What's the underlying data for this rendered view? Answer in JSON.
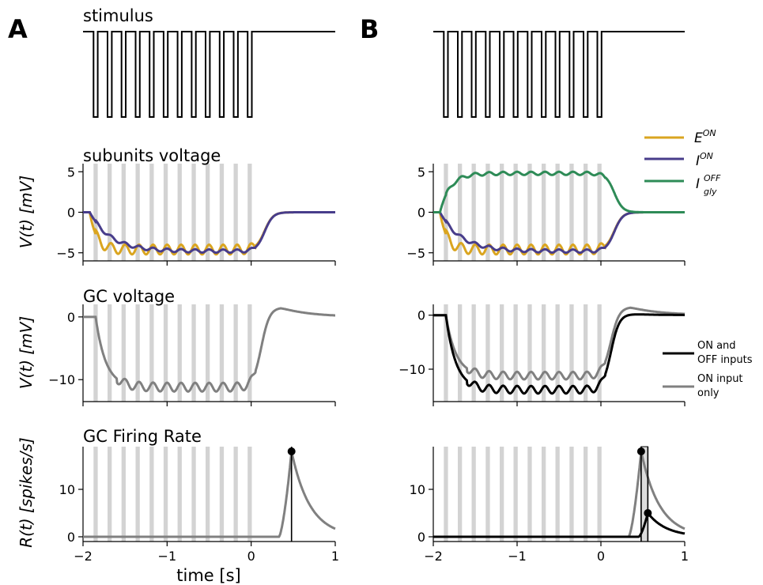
{
  "figure": {
    "panel_letters": [
      "A",
      "B"
    ],
    "xlabel": "time [s]",
    "colors": {
      "E_on": "#DAA520",
      "I_on": "#483D8B",
      "I_gly_off": "#2E8B57",
      "on_off_inputs": "#000000",
      "on_input_only": "#808080",
      "flash_band": "#d3d3d3"
    }
  },
  "chart_data": [
    {
      "panel": "A",
      "row": "stimulus",
      "type": "line",
      "title": "stimulus",
      "description_levels": {
        "high": 1,
        "low": 0
      },
      "flash_times": [
        -1.875,
        -1.708,
        -1.542,
        -1.375,
        -1.208,
        -1.042,
        -0.875,
        -0.708,
        -0.542,
        -0.375,
        -0.208,
        -0.042
      ],
      "flash_duration_s": 0.05,
      "xlim": [
        -2,
        1
      ]
    },
    {
      "panel": "B",
      "row": "stimulus",
      "type": "line",
      "title": "",
      "flash_times": [
        -1.875,
        -1.708,
        -1.542,
        -1.375,
        -1.208,
        -1.042,
        -0.875,
        -0.708,
        -0.542,
        -0.375,
        -0.208,
        -0.042
      ],
      "flash_duration_s": 0.05,
      "xlim": [
        -2,
        1
      ]
    },
    {
      "panel": "A",
      "row": "subunits",
      "type": "line",
      "title": "subunits voltage",
      "ylabel": "V(t) [mV]",
      "xlim": [
        -2,
        1
      ],
      "ylim": [
        -6,
        6
      ],
      "yticks": [
        5,
        0,
        -5
      ],
      "series": [
        {
          "key": "E_on",
          "plateau": -4.6,
          "ripple": 0.6
        },
        {
          "key": "I_on",
          "plateau": -4.8,
          "ripple": 0.2
        }
      ]
    },
    {
      "panel": "B",
      "row": "subunits",
      "type": "line",
      "title": "",
      "xlim": [
        -2,
        1
      ],
      "ylim": [
        -6,
        6
      ],
      "yticks": [
        5,
        0,
        -5
      ],
      "series": [
        {
          "key": "E_on",
          "plateau": -4.6,
          "ripple": 0.6
        },
        {
          "key": "I_on",
          "plateau": -4.8,
          "ripple": 0.2
        },
        {
          "key": "I_gly_off",
          "plateau": 4.8,
          "ripple": 0.2
        }
      ],
      "legend": {
        "position": "right",
        "entries": [
          {
            "key": "E_on",
            "base": "E",
            "sup": "ON",
            "sub": ""
          },
          {
            "key": "I_on",
            "base": "I",
            "sup": "ON",
            "sub": ""
          },
          {
            "key": "I_gly_off",
            "base": "I",
            "sup": "OFF",
            "sub": "gly"
          }
        ]
      }
    },
    {
      "panel": "A",
      "row": "gc_voltage",
      "type": "line",
      "title": "GC voltage",
      "ylabel": "V(t) [mV]",
      "xlim": [
        -2,
        1
      ],
      "ylim": [
        -13.5,
        2
      ],
      "yticks": [
        0,
        -10
      ],
      "series": [
        {
          "key": "on_input_only",
          "plateau": -11.2,
          "peak": 1.5
        }
      ]
    },
    {
      "panel": "B",
      "row": "gc_voltage",
      "type": "line",
      "title": "",
      "xlim": [
        -2,
        1
      ],
      "ylim": [
        -16,
        2
      ],
      "yticks": [
        0,
        -10
      ],
      "series": [
        {
          "key": "on_input_only",
          "plateau": -11.2,
          "peak": 1.5
        },
        {
          "key": "on_off_inputs",
          "plateau": -13.8,
          "peak": 0.2
        }
      ],
      "legend": {
        "position": "right",
        "entries": [
          {
            "key": "on_off_inputs",
            "lines": [
              "ON and",
              "OFF inputs"
            ]
          },
          {
            "key": "on_input_only",
            "lines": [
              "ON input",
              "only"
            ]
          }
        ]
      }
    },
    {
      "panel": "A",
      "row": "firing_rate",
      "type": "line",
      "title": "GC Firing Rate",
      "ylabel": "R(t) [spikes/s]",
      "xlabel": "time [s]",
      "xlim": [
        -2,
        1
      ],
      "ylim": [
        -1,
        19
      ],
      "yticks": [
        10,
        0
      ],
      "xticks": [
        -2,
        -1,
        0,
        1
      ],
      "series": [
        {
          "key": "on_input_only",
          "onset": 0.33,
          "peak_time": 0.48,
          "peak_value": 18
        }
      ],
      "peak_markers": [
        0.48
      ]
    },
    {
      "panel": "B",
      "row": "firing_rate",
      "type": "line",
      "title": "",
      "xlabel": "",
      "xlim": [
        -2,
        1
      ],
      "ylim": [
        -1,
        19
      ],
      "yticks": [
        10,
        0
      ],
      "xticks": [
        -2,
        -1,
        0,
        1
      ],
      "series": [
        {
          "key": "on_input_only",
          "onset": 0.33,
          "peak_time": 0.48,
          "peak_value": 18
        },
        {
          "key": "on_off_inputs",
          "onset": 0.45,
          "peak_time": 0.56,
          "peak_value": 5
        }
      ],
      "peak_markers": [
        0.48,
        0.56
      ],
      "shaded_interval": [
        0.48,
        0.56
      ]
    }
  ]
}
